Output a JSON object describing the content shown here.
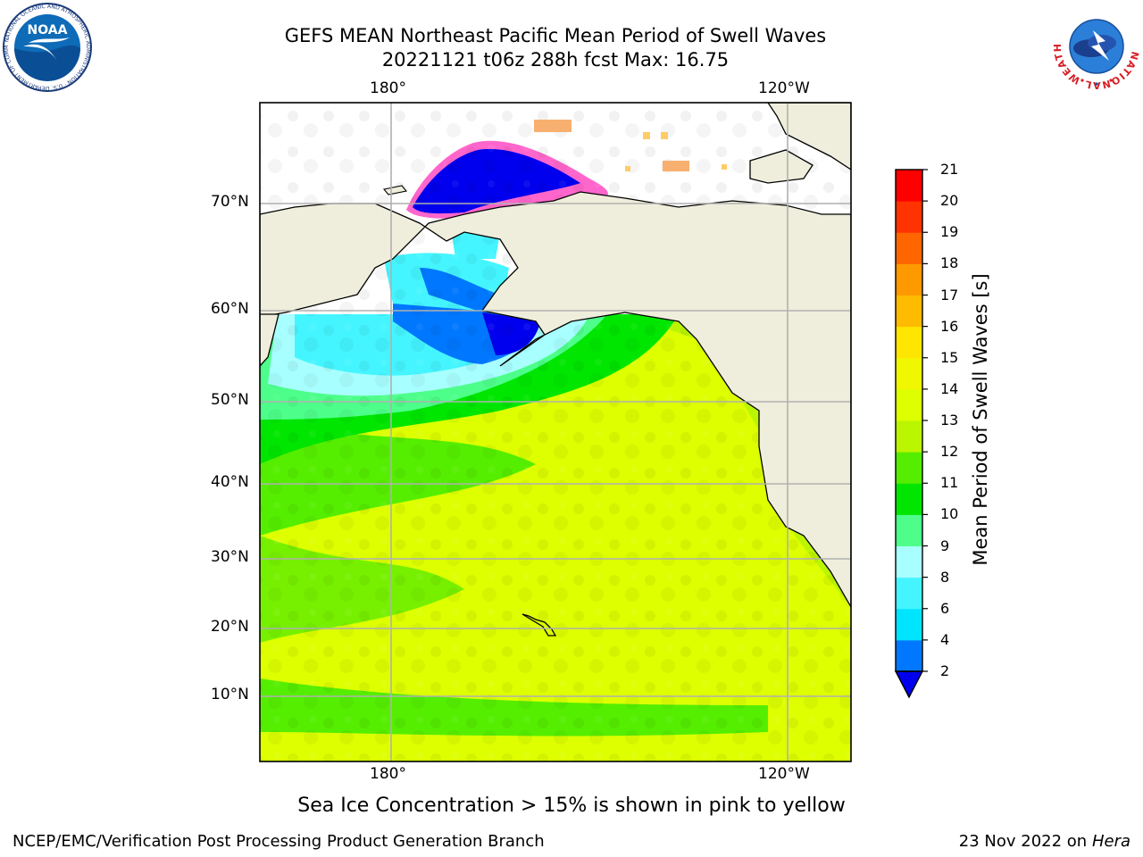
{
  "header": {
    "title_line1": "GEFS MEAN Northeast Pacific Mean Period of Swell Waves",
    "title_line2": "20221121 t06z 288h fcst   Max: 16.75"
  },
  "logos": {
    "left": "NOAA",
    "left_ring_text": "NATIONAL OCEANIC AND ATMOSPHERIC ADMINISTRATION · U.S. DEPARTMENT OF COMMERCE",
    "right_ring_text": "NATIONAL WEATHER SERVICE"
  },
  "map": {
    "lon_ticks_top": [
      "180°",
      "120°W"
    ],
    "lon_ticks_bottom": [
      "180°",
      "120°W"
    ],
    "lat_ticks": [
      "70°N",
      "60°N",
      "50°N",
      "40°N",
      "30°N",
      "20°N",
      "10°N"
    ],
    "colors": {
      "land": "#efeedc",
      "grid": "#b0b0b0",
      "coast": "#000000"
    }
  },
  "colorbar": {
    "title": "Mean Period of Swell Waves [s]",
    "tick_labels": [
      "2",
      "4",
      "6",
      "8",
      "9",
      "10",
      "11",
      "12",
      "13",
      "14",
      "15",
      "16",
      "17",
      "18",
      "19",
      "20",
      "21"
    ],
    "colors": [
      "#0077ff",
      "#00e5ff",
      "#44f5ff",
      "#a8ffff",
      "#4dff8a",
      "#00e600",
      "#55ee00",
      "#bbf500",
      "#ddff00",
      "#f0f700",
      "#ffe600",
      "#ffbb00",
      "#ff9900",
      "#ff6600",
      "#ff3300",
      "#ff0000"
    ],
    "under_color": "#0000ee"
  },
  "caption": "Sea Ice Concentration > 15% is shown in pink to yellow",
  "footer": {
    "left": "NCEP/EMC/Verification Post Processing Product Generation Branch",
    "right_date": "23 Nov 2022 on",
    "right_host": "Hera"
  }
}
